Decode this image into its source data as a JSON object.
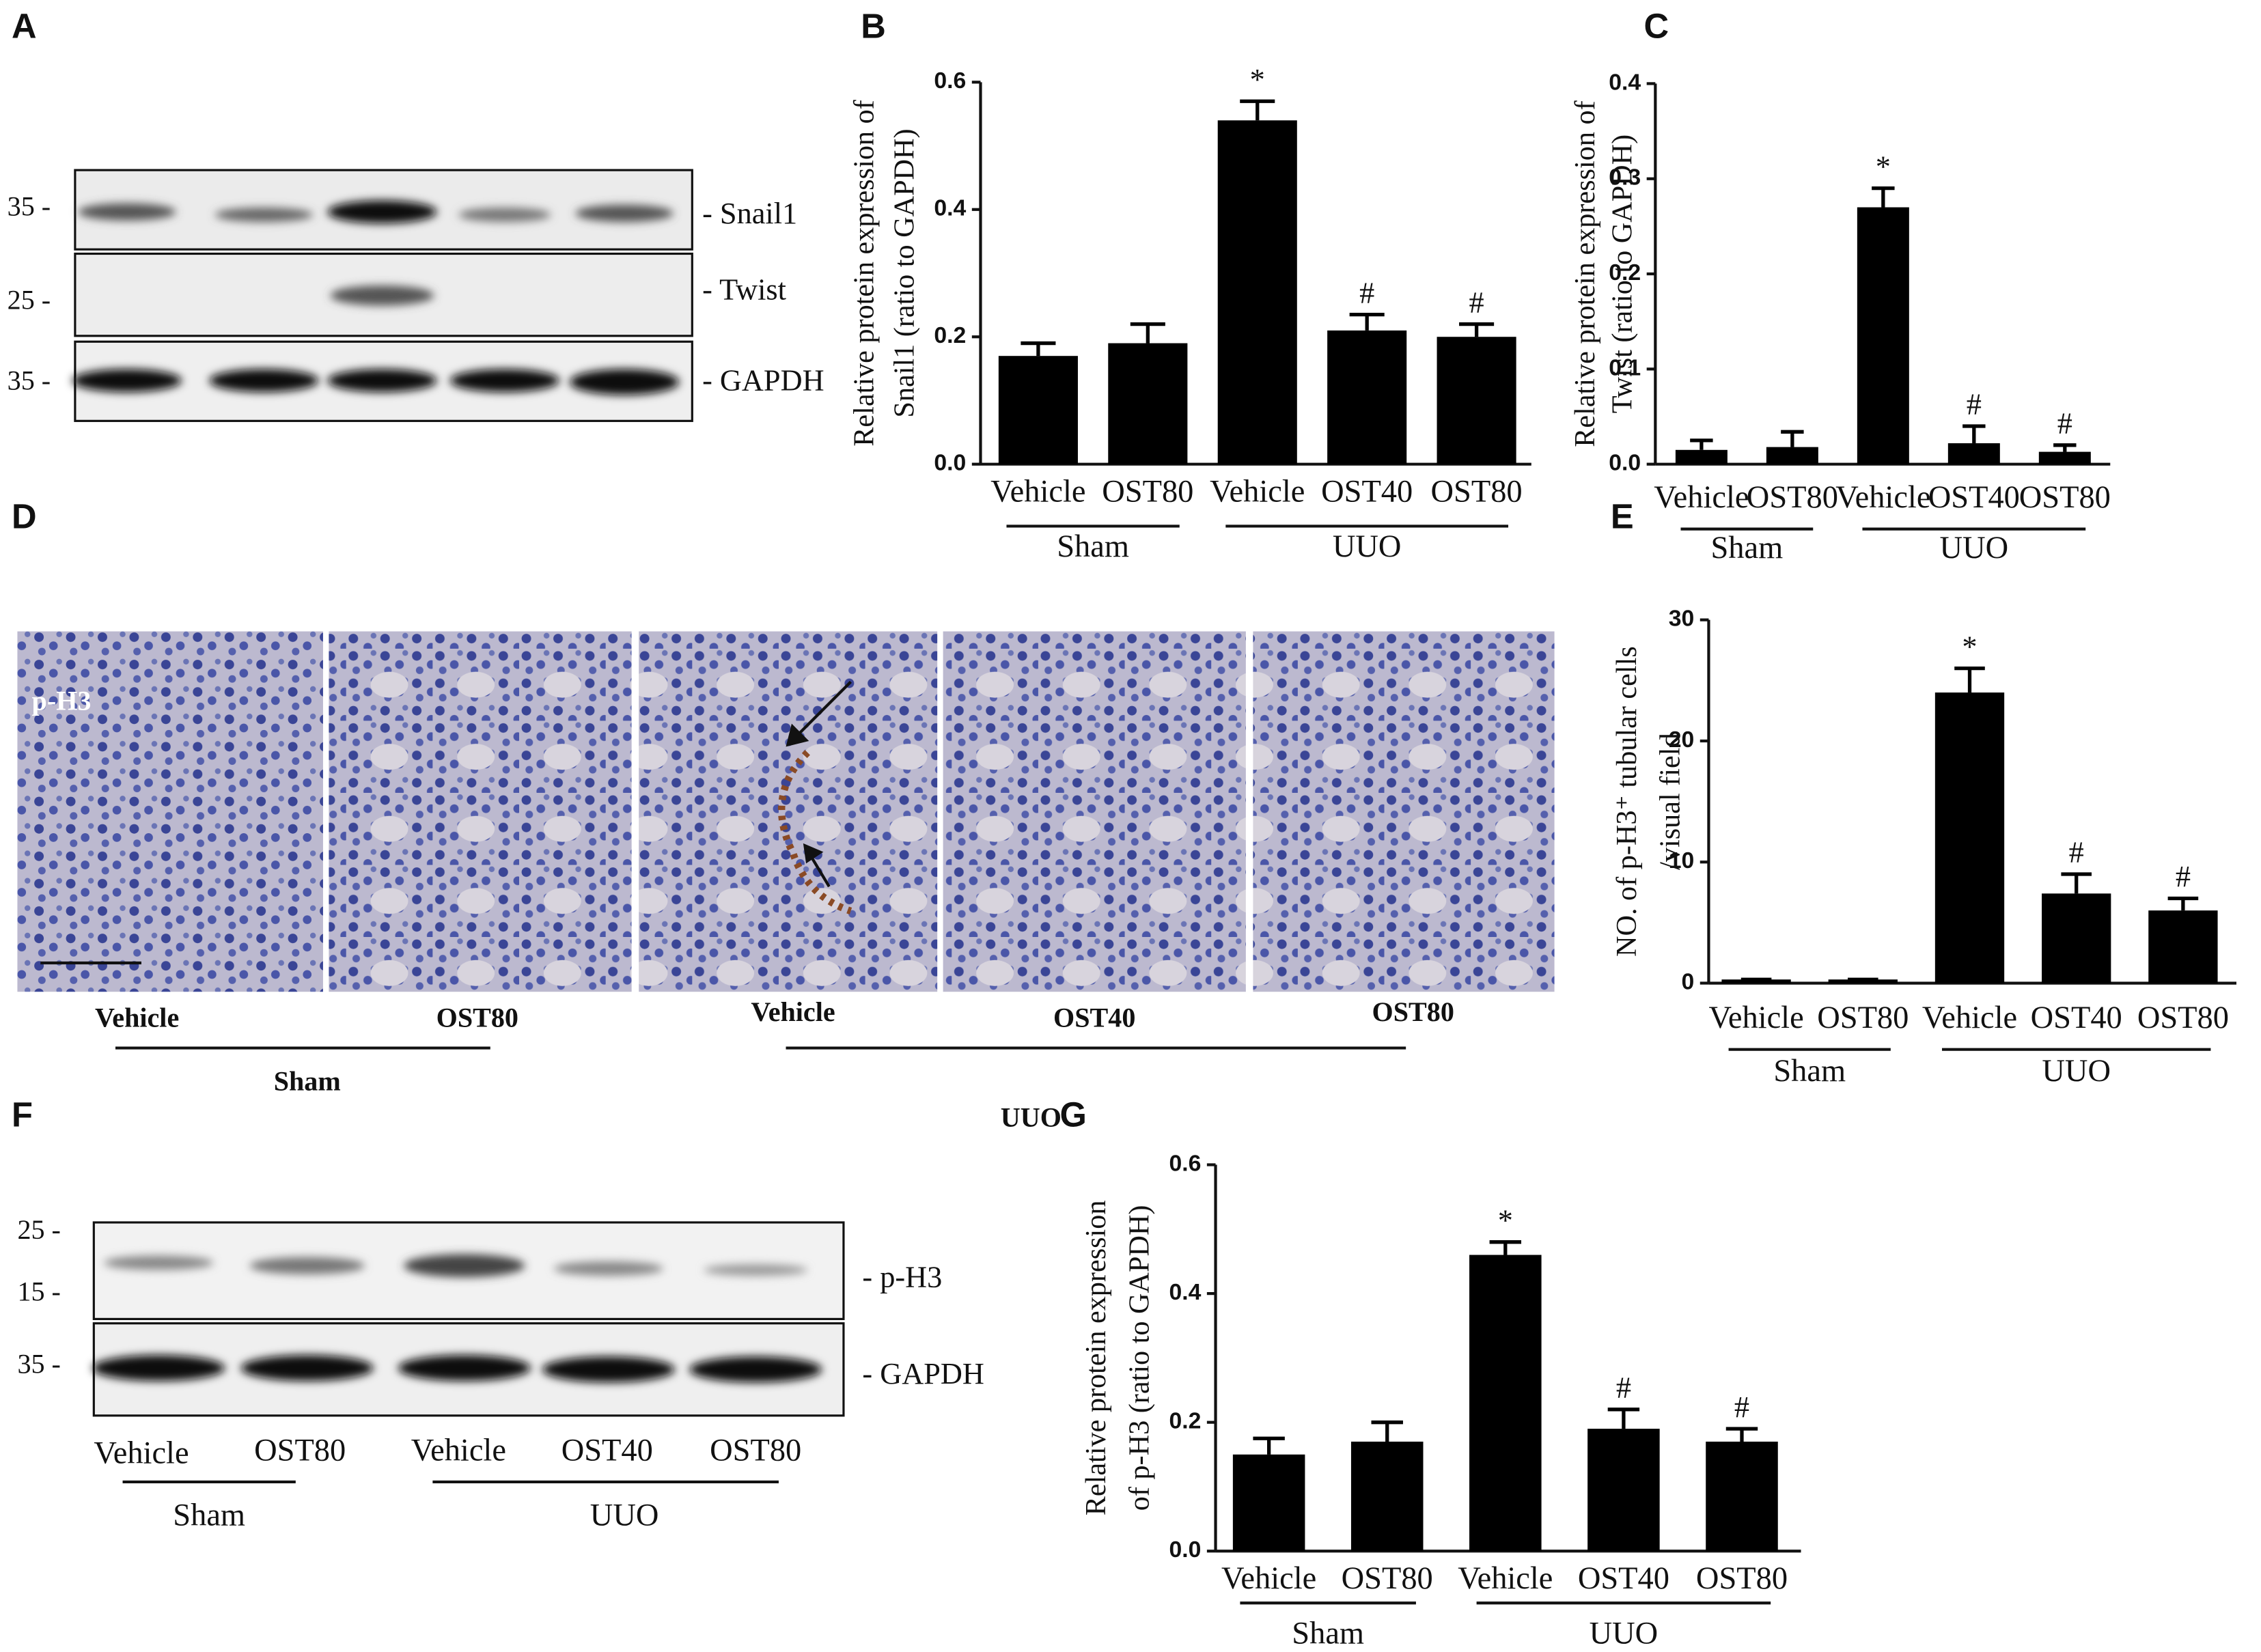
{
  "blot_a": {
    "label": "A",
    "markers": [
      "35 -",
      "25 -",
      "35 -"
    ],
    "bands": [
      "- Snail1",
      "- Twist",
      "- GAPDH"
    ]
  },
  "histology_d": {
    "label": "D",
    "stain": "p-H3",
    "lanes": [
      "Vehicle",
      "OST80",
      "Vehicle",
      "OST40",
      "OST80"
    ],
    "groups": [
      "Sham",
      "UUO"
    ]
  },
  "blot_f": {
    "label": "F",
    "markers": [
      "25 -",
      "15 -",
      "35 -"
    ],
    "bands": [
      "- p-H3",
      "- GAPDH"
    ],
    "lanes": [
      "Vehicle",
      "OST80",
      "Vehicle",
      "OST40",
      "OST80"
    ],
    "groups": [
      "Sham",
      "UUO"
    ]
  },
  "chart_data": [
    {
      "type": "bar",
      "panel_label": "B",
      "ylabel": [
        "Relative protein expression of",
        "Snail1 (ratio to GAPDH)"
      ],
      "groups": [
        {
          "label": "Sham",
          "categories": [
            "Vehicle",
            "OST80"
          ]
        },
        {
          "label": "UUO",
          "categories": [
            "Vehicle",
            "OST40",
            "OST80"
          ]
        }
      ],
      "values": [
        0.17,
        0.19,
        0.54,
        0.21,
        0.2
      ],
      "errors": [
        0.02,
        0.03,
        0.03,
        0.025,
        0.02
      ],
      "bar_labels": [
        null,
        null,
        "*",
        "#",
        "#"
      ],
      "color": "#000000",
      "ylim": [
        0,
        0.6
      ],
      "yticks": [
        {
          "value": 0,
          "label": "0.0"
        },
        0.2,
        0.4,
        0.6
      ]
    },
    {
      "type": "bar",
      "panel_label": "C",
      "ylabel": [
        "Relative protein expression of",
        "Twist (ratio to GAPDH)"
      ],
      "groups": [
        {
          "label": "Sham",
          "categories": [
            "Vehicle",
            "OST80"
          ]
        },
        {
          "label": "UUO",
          "categories": [
            "Vehicle",
            "OST40",
            "OST80"
          ]
        }
      ],
      "values": [
        0.015,
        0.018,
        0.27,
        0.022,
        0.013
      ],
      "errors": [
        0.01,
        0.016,
        0.02,
        0.018,
        0.007
      ],
      "bar_labels": [
        null,
        null,
        "*",
        "#",
        "#"
      ],
      "color": "#000000",
      "ylim": [
        0,
        0.4
      ],
      "yticks": [
        {
          "value": 0,
          "label": "0.0"
        },
        0.1,
        0.2,
        0.3,
        0.4
      ]
    },
    {
      "type": "bar",
      "panel_label": "E",
      "ylabel": [
        "NO. of p-H3⁺ tubular cells",
        "/visual field"
      ],
      "groups": [
        {
          "label": "Sham",
          "categories": [
            "Vehicle",
            "OST80"
          ]
        },
        {
          "label": "UUO",
          "categories": [
            "Vehicle",
            "OST40",
            "OST80"
          ]
        }
      ],
      "values": [
        0.3,
        0.3,
        24,
        7.4,
        6
      ],
      "errors": [
        0,
        0,
        2,
        1.6,
        1
      ],
      "bar_labels": [
        null,
        null,
        "*",
        "#",
        "#"
      ],
      "color": "#000000",
      "ylim": [
        0,
        30
      ],
      "yticks": [
        0,
        10,
        20,
        30
      ]
    },
    {
      "type": "bar",
      "panel_label": "G",
      "ylabel": [
        "Relative protein expression",
        "of p-H3 (ratio to GAPDH)"
      ],
      "groups": [
        {
          "label": "Sham",
          "categories": [
            "Vehicle",
            "OST80"
          ]
        },
        {
          "label": "UUO",
          "categories": [
            "Vehicle",
            "OST40",
            "OST80"
          ]
        }
      ],
      "values": [
        0.15,
        0.17,
        0.46,
        0.19,
        0.17
      ],
      "errors": [
        0.025,
        0.03,
        0.02,
        0.03,
        0.02
      ],
      "bar_labels": [
        null,
        null,
        "*",
        "#",
        "#"
      ],
      "color": "#000000",
      "ylim": [
        0,
        0.6
      ],
      "yticks": [
        {
          "value": 0,
          "label": "0.0"
        },
        0.2,
        0.4,
        0.6
      ]
    }
  ]
}
